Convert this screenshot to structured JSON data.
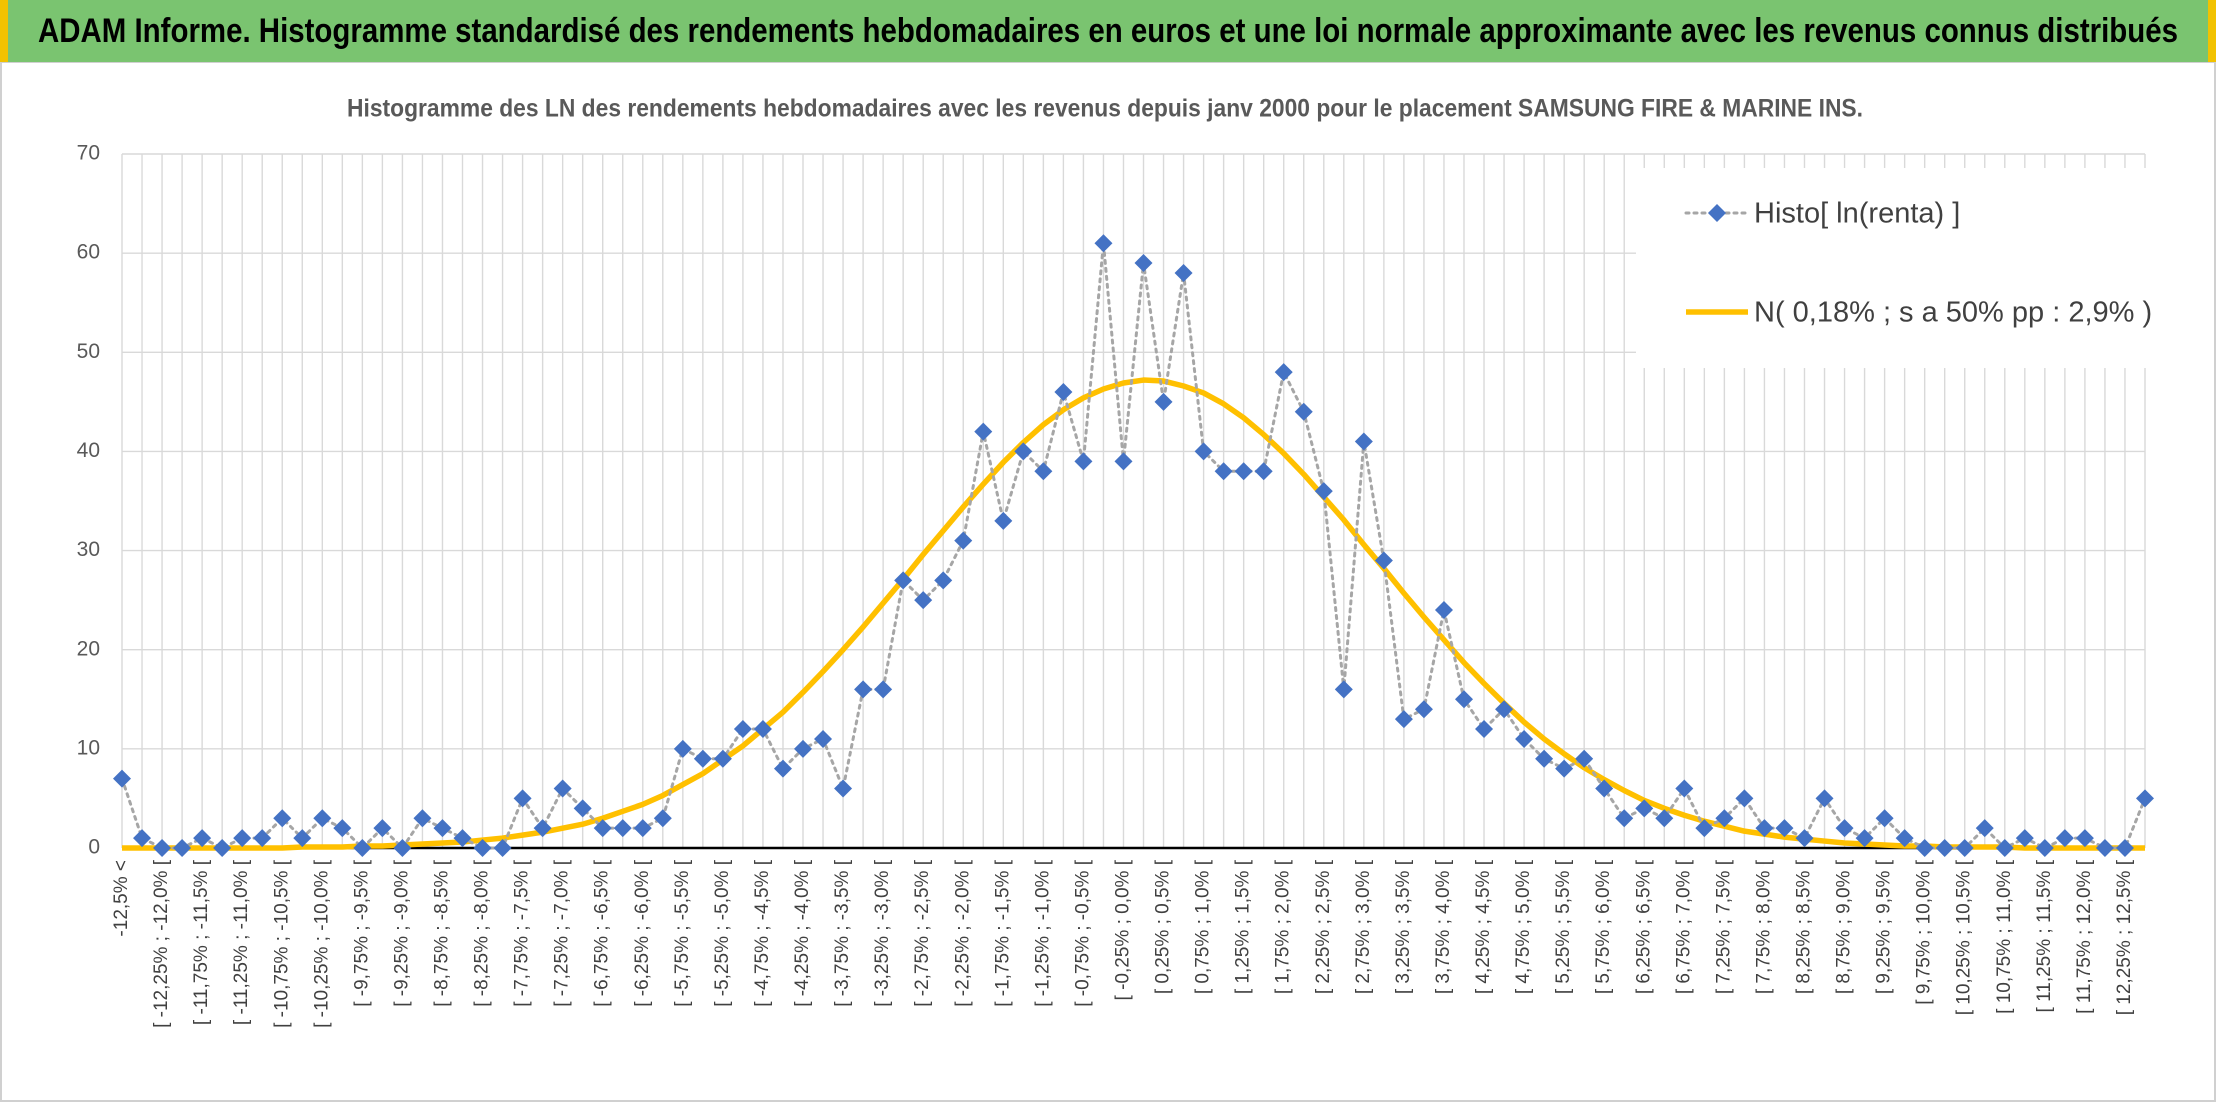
{
  "header": {
    "title": "ADAM Informe. Histogramme standardisé des rendements hebdomadaires en euros et une loi normale approximante avec les revenus connus distribués"
  },
  "chart_data": {
    "type": "line",
    "title": "Histogramme des LN des rendements hebdomadaires avec les revenus depuis janv 2000 pour le placement SAMSUNG FIRE & MARINE INS.",
    "categories": [
      "-12,5% <",
      null,
      "[ -12,25% ; -12,0% [",
      null,
      "[ -11,75% ; -11,5% [",
      null,
      "[ -11,25% ; -11,0% [",
      null,
      "[ -10,75% ; -10,5% [",
      null,
      "[ -10,25% ; -10,0% [",
      null,
      "[ -9,75% ; -9,5% [",
      null,
      "[ -9,25% ; -9,0% [",
      null,
      "[ -8,75% ; -8,5% [",
      null,
      "[ -8,25% ; -8,0% [",
      null,
      "[ -7,75% ; -7,5% [",
      null,
      "[ -7,25% ; -7,0% [",
      null,
      "[ -6,75% ; -6,5% [",
      null,
      "[ -6,25% ; -6,0% [",
      null,
      "[ -5,75% ; -5,5% [",
      null,
      "[ -5,25% ; -5,0% [",
      null,
      "[ -4,75% ; -4,5% [",
      null,
      "[ -4,25% ; -4,0% [",
      null,
      "[ -3,75% ; -3,5% [",
      null,
      "[ -3,25% ; -3,0% [",
      null,
      "[ -2,75% ; -2,5% [",
      null,
      "[ -2,25% ; -2,0% [",
      null,
      "[ -1,75% ; -1,5% [",
      null,
      "[ -1,25% ; -1,0% [",
      null,
      "[ -0,75% ; -0,5% [",
      null,
      "[ -0,25% ; 0,0% [",
      null,
      "[ 0,25% ; 0,5% [",
      null,
      "[ 0,75% ; 1,0% [",
      null,
      "[ 1,25% ; 1,5% [",
      null,
      "[ 1,75% ; 2,0% [",
      null,
      "[ 2,25% ; 2,5% [",
      null,
      "[ 2,75% ; 3,0% [",
      null,
      "[ 3,25% ; 3,5% [",
      null,
      "[ 3,75% ; 4,0% [",
      null,
      "[ 4,25% ; 4,5% [",
      null,
      "[ 4,75% ; 5,0% [",
      null,
      "[ 5,25% ; 5,5% [",
      null,
      "[ 5,75% ; 6,0% [",
      null,
      "[ 6,25% ; 6,5% [",
      null,
      "[ 6,75% ; 7,0% [",
      null,
      "[ 7,25% ; 7,5% [",
      null,
      "[ 7,75% ; 8,0% [",
      null,
      "[ 8,25% ; 8,5% [",
      null,
      "[ 8,75% ; 9,0% [",
      null,
      "[ 9,25% ; 9,5% [",
      null,
      "[ 9,75% ; 10,0% [",
      null,
      "[ 10,25% ; 10,5% [",
      null,
      "[ 10,75% ; 11,0% [",
      null,
      "[ 11,25% ; 11,5% [",
      null,
      "[ 11,75% ; 12,0% [",
      null,
      "[ 12,25% ; 12,5% [",
      null
    ],
    "series": [
      {
        "name": "Histo[ ln(renta) ]",
        "color": "#4472c4",
        "line_color": "#a6a6a6",
        "dash": "dotted",
        "marker": "diamond",
        "values": [
          7,
          1,
          0,
          0,
          1,
          0,
          1,
          1,
          3,
          1,
          3,
          2,
          0,
          2,
          0,
          3,
          2,
          1,
          0,
          0,
          5,
          2,
          6,
          4,
          2,
          2,
          2,
          3,
          10,
          9,
          9,
          12,
          12,
          8,
          10,
          11,
          6,
          16,
          16,
          27,
          25,
          27,
          31,
          42,
          33,
          40,
          38,
          46,
          39,
          61,
          39,
          59,
          45,
          58,
          40,
          38,
          38,
          38,
          48,
          44,
          36,
          16,
          41,
          29,
          13,
          14,
          24,
          15,
          12,
          14,
          11,
          9,
          8,
          9,
          6,
          3,
          4,
          3,
          6,
          2,
          3,
          5,
          2,
          2,
          1,
          5,
          2,
          1,
          3,
          1,
          0,
          0,
          0,
          2,
          0,
          1,
          0,
          1,
          1,
          0,
          0,
          5
        ]
      },
      {
        "name": "N( 0,18% ; s a 50% pp : 2,9% )",
        "color": "#ffc000",
        "line_color": "#ffc000",
        "dash": "solid",
        "marker": "none",
        "values": [
          0,
          0,
          0,
          0,
          0,
          0,
          0,
          0,
          0,
          0.1,
          0.1,
          0.1,
          0.2,
          0.2,
          0.3,
          0.4,
          0.5,
          0.6,
          0.8,
          1.0,
          1.3,
          1.6,
          2.0,
          2.4,
          3.0,
          3.7,
          4.4,
          5.3,
          6.4,
          7.5,
          8.9,
          10.3,
          12.0,
          13.7,
          15.7,
          17.8,
          20.0,
          22.3,
          24.7,
          27.1,
          29.6,
          32.0,
          34.4,
          36.7,
          38.9,
          40.9,
          42.7,
          44.2,
          45.4,
          46.3,
          46.9,
          47.2,
          47.1,
          46.6,
          45.9,
          44.8,
          43.4,
          41.7,
          39.8,
          37.7,
          35.4,
          33.1,
          30.6,
          28.2,
          25.7,
          23.3,
          21.0,
          18.7,
          16.6,
          14.6,
          12.7,
          11.0,
          9.5,
          8.1,
          6.9,
          5.8,
          4.8,
          4.0,
          3.3,
          2.7,
          2.2,
          1.7,
          1.4,
          1.1,
          0.9,
          0.7,
          0.5,
          0.4,
          0.3,
          0.2,
          0.2,
          0.1,
          0.1,
          0.1,
          0.1,
          0,
          0,
          0,
          0,
          0,
          0,
          0
        ]
      }
    ],
    "ylim": [
      0,
      70
    ],
    "yticks": [
      0,
      10,
      20,
      30,
      40,
      50,
      60,
      70
    ],
    "grid": true,
    "legend": "upper right"
  }
}
